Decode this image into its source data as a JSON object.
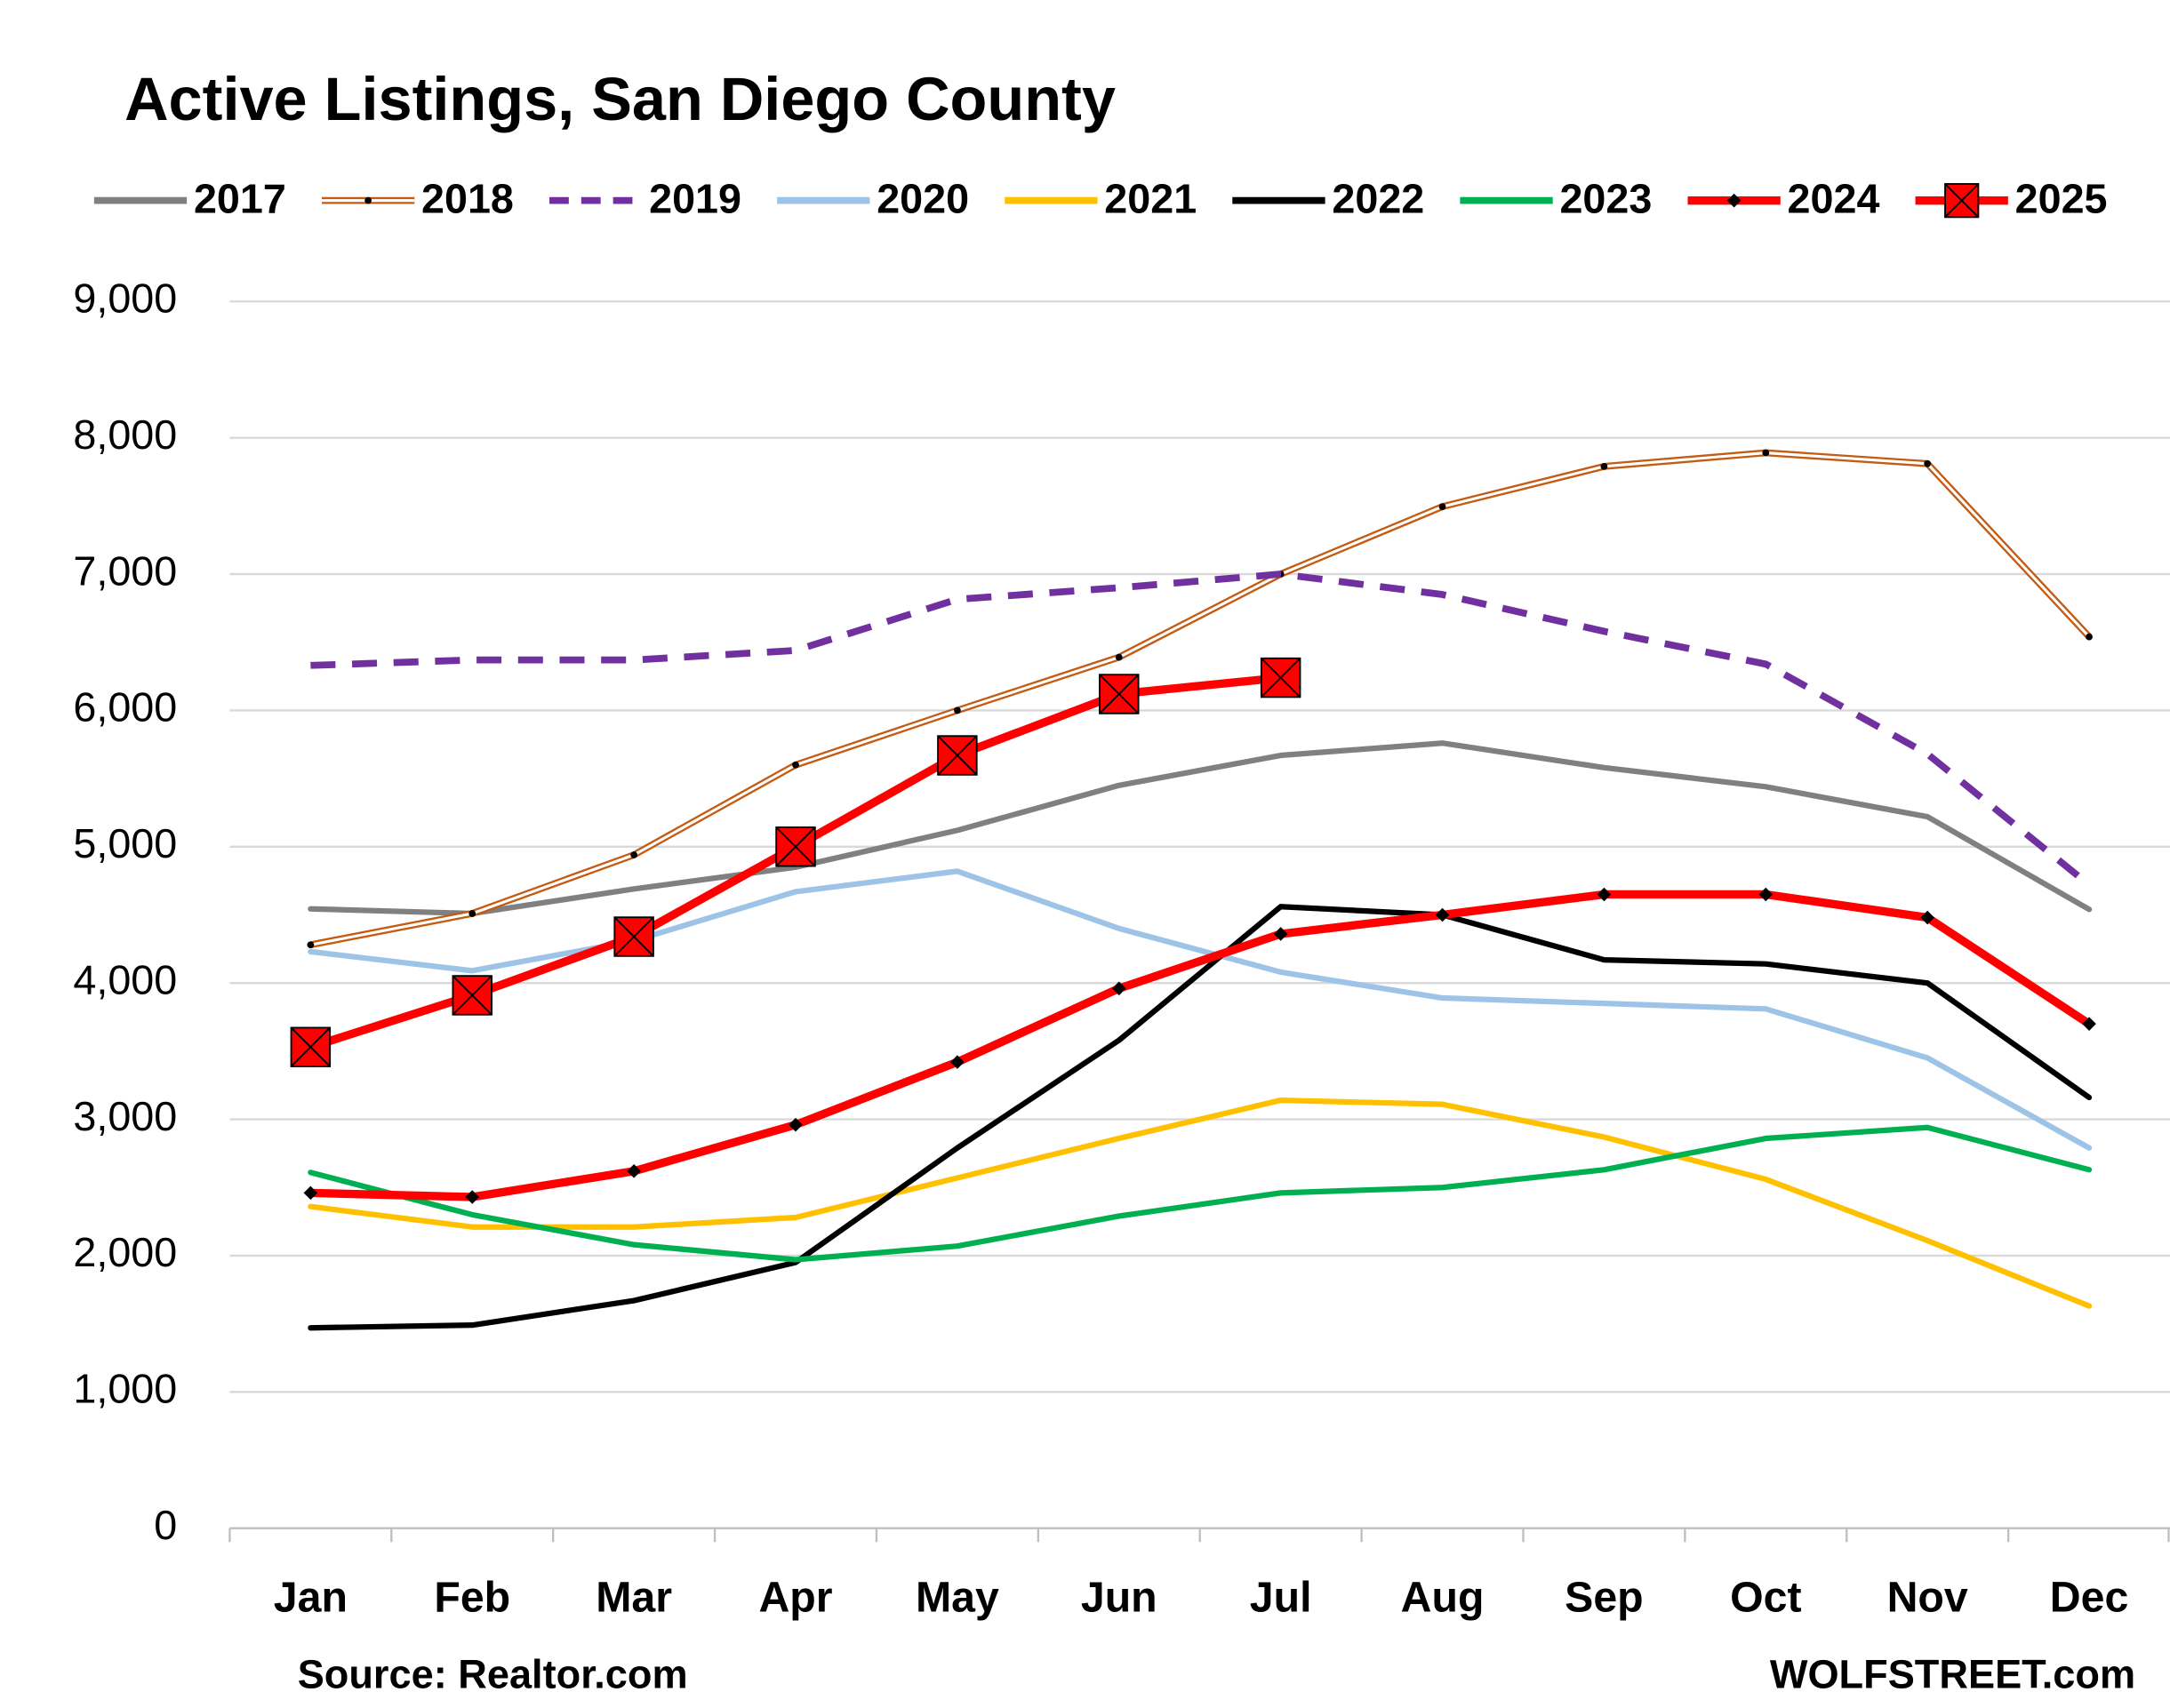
{
  "chart_data": {
    "type": "line",
    "title": "Active Listings, San Diego County",
    "source": "Source: Realtor.com",
    "credit": "WOLFSTREET.com",
    "categories": [
      "Jan",
      "Feb",
      "Mar",
      "Apr",
      "May",
      "Jun",
      "Jul",
      "Aug",
      "Sep",
      "Oct",
      "Nov",
      "Dec"
    ],
    "ylim": [
      0,
      9000
    ],
    "yticks": [
      0,
      {
        "value": 1000,
        "label": "1,000"
      },
      {
        "value": 2000,
        "label": "2,000"
      },
      {
        "value": 3000,
        "label": "3,000"
      },
      {
        "value": 4000,
        "label": "4,000"
      },
      {
        "value": 5000,
        "label": "5,000"
      },
      {
        "value": 6000,
        "label": "6,000"
      },
      {
        "value": 7000,
        "label": "7,000"
      },
      {
        "value": 8000,
        "label": "8,000"
      },
      {
        "value": 9000,
        "label": "9,000"
      }
    ],
    "grid": true,
    "legend": "top",
    "series": [
      {
        "name": "2017",
        "color": "#808080",
        "line_style": "solid",
        "values": [
          4544,
          4510,
          4690,
          4850,
          5120,
          5450,
          5670,
          5760,
          5580,
          5440,
          5220,
          4540
        ]
      },
      {
        "name": "2018",
        "color": "#c55a11",
        "line_style": "double",
        "marker": "dot",
        "values": [
          4280,
          4510,
          4940,
          5600,
          6000,
          6390,
          7000,
          7495,
          7790,
          7890,
          7810,
          6540
        ]
      },
      {
        "name": "2019",
        "color": "#7030a0",
        "line_style": "dashed",
        "values": [
          6330,
          6370,
          6370,
          6440,
          6815,
          6900,
          7000,
          6850,
          6580,
          6340,
          5680,
          4720
        ]
      },
      {
        "name": "2020",
        "color": "#9dc3e6",
        "line_style": "solid",
        "values": [
          4230,
          4090,
          4310,
          4670,
          4820,
          4400,
          4080,
          3890,
          3850,
          3810,
          3450,
          2790
        ]
      },
      {
        "name": "2021",
        "color": "#ffc000",
        "line_style": "solid",
        "values": [
          2360,
          2210,
          2210,
          2280,
          2570,
          2860,
          3140,
          3110,
          2870,
          2560,
          2110,
          1630
        ]
      },
      {
        "name": "2022",
        "color": "#000000",
        "line_style": "solid",
        "values": [
          1470,
          1490,
          1670,
          1950,
          2790,
          3580,
          4560,
          4500,
          4170,
          4140,
          4000,
          3160
        ]
      },
      {
        "name": "2023",
        "color": "#00b050",
        "line_style": "solid",
        "values": [
          2610,
          2300,
          2080,
          1970,
          2070,
          2290,
          2460,
          2500,
          2630,
          2860,
          2940,
          2630
        ]
      },
      {
        "name": "2024",
        "color": "#ff0000",
        "line_style": "thick",
        "marker": "diamond",
        "values": [
          2460,
          2430,
          2620,
          2960,
          3420,
          3960,
          4360,
          4500,
          4650,
          4650,
          4480,
          3700
        ]
      },
      {
        "name": "2025",
        "color": "#ff0000",
        "line_style": "thick",
        "marker": "square-x",
        "values": [
          3530,
          3910,
          4340,
          5000,
          5670,
          6120,
          6240,
          null,
          null,
          null,
          null,
          null
        ]
      }
    ]
  }
}
